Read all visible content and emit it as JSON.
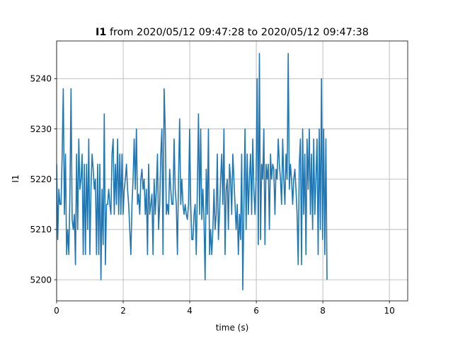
{
  "chart_data": {
    "type": "line",
    "title_bold": "I1",
    "title_rest": " from 2020/05/12 09:47:28 to 2020/05/12 09:47:38",
    "xlabel": "time (s)",
    "ylabel": "I1",
    "xlim": [
      0,
      10.55
    ],
    "ylim": [
      5195.8,
      5247.5
    ],
    "xticks": [
      0,
      2,
      4,
      6,
      8,
      10
    ],
    "yticks": [
      5200,
      5210,
      5220,
      5230,
      5240
    ],
    "grid": true,
    "color": "#1f77b4",
    "series": [
      {
        "dx": 0.0333,
        "values": [
          5223,
          5208,
          5218,
          5215,
          5215,
          5225,
          5238,
          5213,
          5225,
          5205,
          5210,
          5205,
          5217,
          5238,
          5212,
          5210,
          5213,
          5203,
          5225,
          5210,
          5228,
          5218,
          5220,
          5225,
          5205,
          5223,
          5205,
          5223,
          5210,
          5228,
          5205,
          5218,
          5225,
          5222,
          5218,
          5220,
          5205,
          5223,
          5205,
          5223,
          5200,
          5218,
          5207,
          5233,
          5203,
          5215,
          5215,
          5218,
          5215,
          5213,
          5225,
          5228,
          5213,
          5223,
          5215,
          5228,
          5213,
          5225,
          5213,
          5225,
          5213,
          5218,
          5220,
          5223,
          5218,
          5215,
          5210,
          5205,
          5215,
          5220,
          5228,
          5218,
          5230,
          5215,
          5217,
          5213,
          5220,
          5222,
          5218,
          5220,
          5213,
          5218,
          5205,
          5223,
          5213,
          5215,
          5217,
          5205,
          5220,
          5213,
          5218,
          5225,
          5210,
          5215,
          5225,
          5230,
          5205,
          5238,
          5230,
          5213,
          5215,
          5213,
          5222,
          5218,
          5215,
          5215,
          5228,
          5218,
          5215,
          5205,
          5220,
          5232,
          5215,
          5220,
          5215,
          5213,
          5215,
          5213,
          5212,
          5215,
          5230,
          5215,
          5208,
          5208,
          5213,
          5215,
          5205,
          5218,
          5233,
          5213,
          5230,
          5212,
          5218,
          5212,
          5200,
          5222,
          5213,
          5230,
          5205,
          5210,
          5205,
          5210,
          5218,
          5210,
          5213,
          5225,
          5208,
          5213,
          5220,
          5225,
          5215,
          5230,
          5205,
          5218,
          5220,
          5210,
          5223,
          5220,
          5213,
          5225,
          5220,
          5215,
          5210,
          5215,
          5205,
          5213,
          5208,
          5225,
          5198,
          5215,
          5230,
          5210,
          5225,
          5213,
          5220,
          5225,
          5213,
          5228,
          5218,
          5213,
          5220,
          5240,
          5207,
          5245,
          5208,
          5223,
          5220,
          5230,
          5207,
          5223,
          5220,
          5223,
          5210,
          5225,
          5220,
          5223,
          5222,
          5213,
          5222,
          5220,
          5228,
          5223,
          5220,
          5215,
          5228,
          5220,
          5215,
          5225,
          5220,
          5245,
          5218,
          5223,
          5220,
          5215,
          5220,
          5222,
          5218,
          5213,
          5203,
          5223,
          5228,
          5203,
          5230,
          5213,
          5225,
          5205,
          5228,
          5218,
          5230,
          5213,
          5225,
          5210,
          5228,
          5213,
          5220,
          5228,
          5205,
          5230,
          5210,
          5240,
          5208,
          5230,
          5205,
          5228,
          5200
        ],
        "_note": ""
      }
    ]
  }
}
